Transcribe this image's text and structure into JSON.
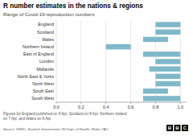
{
  "chart_data": {
    "type": "bar",
    "orientation": "horizontal",
    "title": "R number estimates in the nations & regions",
    "subtitle": "Range of Covid-19 reproduction numbers",
    "categories": [
      "England",
      "Scotland",
      "Wales",
      "Northern Ireland",
      "East of England",
      "London",
      "Midlands",
      "North East & Yorks",
      "North West",
      "South East",
      "South West"
    ],
    "values": [
      [
        0.8,
        1.0
      ],
      [
        0.8,
        1.0
      ],
      [
        0.7,
        0.9
      ],
      [
        0.4,
        0.6
      ],
      [
        0.7,
        1.0
      ],
      [
        0.8,
        1.0
      ],
      [
        0.75,
        1.0
      ],
      [
        0.8,
        1.0
      ],
      [
        0.8,
        1.0
      ],
      [
        0.7,
        0.9
      ],
      [
        0.7,
        1.0
      ]
    ],
    "color": "#7eb8c9",
    "xlim": [
      0.0,
      1.05
    ],
    "xticks": [
      {
        "value": 0.0,
        "label": "0.0"
      },
      0.2,
      0.4,
      0.6,
      0.8,
      {
        "value": 1.0,
        "label": "1.0"
      }
    ],
    "grid": true,
    "annotations": [
      "Figures for England published on 9 Apr, Scotland on 8 Apr, Northern Ireland\non 7 Apr, and Wales on 9 Apr",
      "Source: DHSC, Scottish Government, NI Dept. of Health, Wales TAC",
      "B",
      "B",
      "C"
    ]
  }
}
